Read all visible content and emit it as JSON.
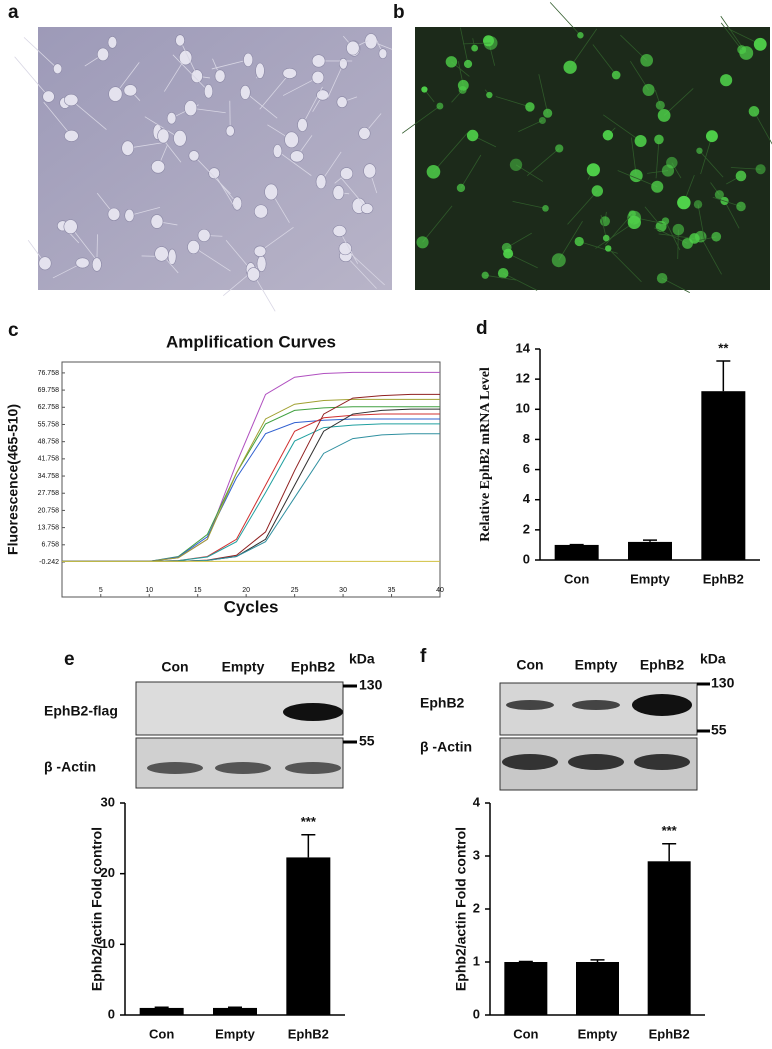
{
  "letters": [
    "a",
    "b",
    "c",
    "d",
    "e",
    "f"
  ],
  "blots": [
    {
      "lanes": [
        "Con",
        "Empty",
        "EphB2"
      ],
      "unit": "kDa",
      "rows": [
        "EphB2-flag",
        "β -Actin"
      ],
      "markers": [
        "130",
        "55"
      ]
    },
    {
      "lanes": [
        "Con",
        "Empty",
        "EphB2"
      ],
      "unit": "kDa",
      "rows": [
        "EphB2",
        "β -Actin"
      ],
      "markers": [
        "130",
        "55"
      ]
    }
  ],
  "chart_data": [
    {
      "type": "line",
      "title": "Amplification Curves",
      "x_label": "Cycles",
      "y_label": "Fluorescence(465-510)",
      "x": [
        1,
        4,
        7,
        10,
        13,
        16,
        19,
        22,
        25,
        28,
        31,
        34,
        37,
        40
      ],
      "xlim": [
        1,
        40
      ],
      "xticks": [
        5,
        10,
        15,
        20,
        25,
        30,
        35,
        40
      ],
      "ylim": [
        -14.5,
        81.2
      ],
      "yticks": [
        -0.242,
        6.758,
        13.758,
        20.758,
        27.758,
        34.758,
        41.758,
        48.758,
        55.758,
        62.758,
        69.758,
        76.758
      ],
      "series": [
        {
          "color": "#b050c0",
          "values": [
            0,
            0,
            0,
            0,
            1.5,
            9,
            40,
            68,
            75,
            76.5,
            77,
            77,
            77,
            77
          ]
        },
        {
          "color": "#40a040",
          "values": [
            0,
            0,
            0,
            0,
            2,
            11,
            36,
            56,
            61.5,
            62.5,
            63,
            63,
            63,
            63
          ]
        },
        {
          "color": "#3060d0",
          "values": [
            0,
            0,
            0,
            0,
            1.8,
            10,
            34,
            52,
            56.5,
            57.5,
            58,
            58,
            58,
            58
          ]
        },
        {
          "color": "#a0a030",
          "values": [
            0,
            0,
            0,
            0,
            1.5,
            9,
            36,
            58,
            64,
            65.5,
            66,
            66,
            66,
            66
          ]
        },
        {
          "color": "#d03030",
          "values": [
            0,
            0,
            0,
            0,
            0.3,
            2,
            9,
            31,
            53,
            58.5,
            59.5,
            60,
            60,
            60
          ]
        },
        {
          "color": "#20a0a0",
          "values": [
            0,
            0,
            0,
            0,
            0.3,
            1.8,
            8,
            28,
            49,
            54.5,
            55.5,
            56,
            56,
            56
          ]
        },
        {
          "color": "#902020",
          "values": [
            0,
            0,
            0,
            0,
            0,
            0.5,
            2.5,
            12,
            37,
            60,
            66.5,
            67.5,
            68,
            68
          ]
        },
        {
          "color": "#303030",
          "values": [
            0,
            0,
            0,
            0,
            0,
            0.4,
            2,
            9,
            31,
            53,
            60,
            61.5,
            62,
            62
          ]
        },
        {
          "color": "#3090a0",
          "values": [
            0,
            0,
            0,
            0,
            0,
            0.4,
            2,
            8,
            26,
            44,
            50,
            51.5,
            52,
            52
          ]
        },
        {
          "color": "#d0c040",
          "values": [
            0,
            0,
            0,
            0,
            0,
            0,
            0,
            0,
            0,
            0,
            0,
            0,
            0,
            0
          ]
        }
      ]
    },
    {
      "type": "bar",
      "y_label": "Relative EphB2 mRNA Level",
      "categories": [
        "Con",
        "Empty",
        "EphB2"
      ],
      "values": [
        1,
        1.2,
        11.2
      ],
      "errors": [
        0.02,
        0.12,
        2.0
      ],
      "color": "#000000",
      "ylim": [
        0,
        14
      ],
      "yticks": [
        0,
        2,
        4,
        6,
        8,
        10,
        12,
        14
      ],
      "annotation": "**"
    },
    {
      "type": "bar",
      "y_label": "Ephb2/actin Fold control",
      "categories": [
        "Con",
        "Empty",
        "EphB2"
      ],
      "values": [
        1,
        1,
        22.3
      ],
      "errors": [
        0.1,
        0.1,
        3.2
      ],
      "color": "#000000",
      "ylim": [
        0,
        30
      ],
      "yticks": [
        0,
        10,
        20,
        30
      ],
      "annotation": "***"
    },
    {
      "type": "bar",
      "y_label": "Ephb2/actin Fold control",
      "categories": [
        "Con",
        "Empty",
        "EphB2"
      ],
      "values": [
        1,
        1,
        2.9
      ],
      "errors": [
        0.01,
        0.04,
        0.33
      ],
      "color": "#000000",
      "ylim": [
        0,
        4
      ],
      "yticks": [
        0,
        1,
        2,
        3,
        4
      ],
      "annotation": "***"
    }
  ]
}
